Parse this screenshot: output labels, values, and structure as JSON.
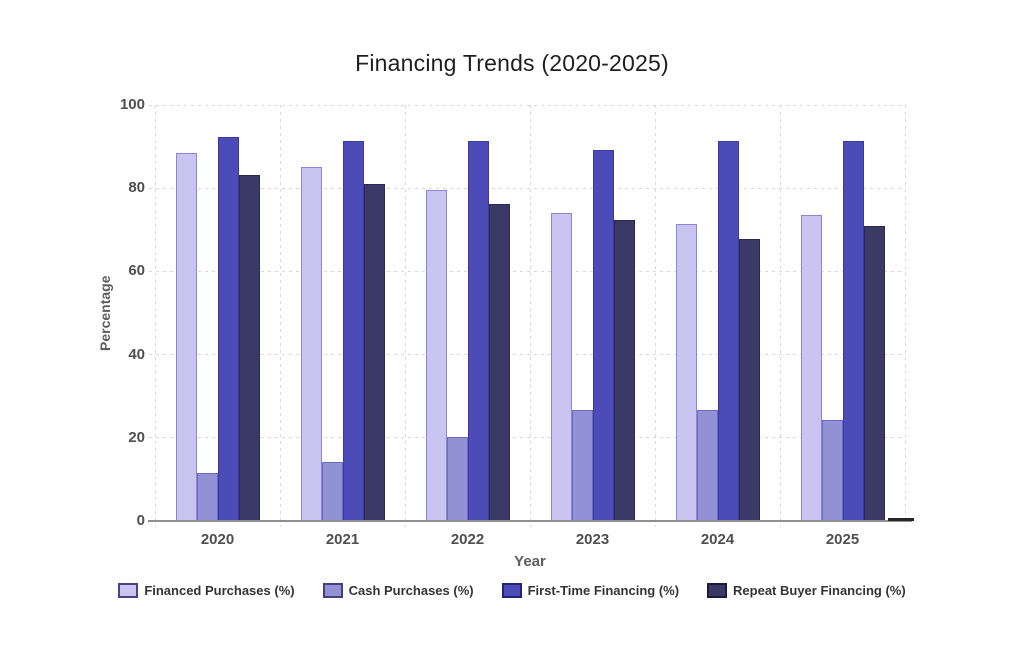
{
  "chart": {
    "title": "Financing Trends (2020-2025)",
    "xlabel": "Year",
    "ylabel": "Percentage"
  },
  "chart_data": {
    "type": "bar",
    "title": "Financing Trends (2020-2025)",
    "xlabel": "Year",
    "ylabel": "Percentage",
    "categories": [
      "2020",
      "2021",
      "2022",
      "2023",
      "2024",
      "2025"
    ],
    "series": [
      {
        "name": "Financed Purchases (%)",
        "color": "#c9c4f0",
        "border": "#8d85d8",
        "legend_border": "#4a4380",
        "values": [
          88.4,
          85.2,
          79.6,
          74.0,
          71.5,
          73.5
        ]
      },
      {
        "name": "Cash Purchases (%)",
        "color": "#9391d6",
        "border": "#6d6bc0",
        "legend_border": "#434178",
        "values": [
          11.5,
          14.3,
          20.2,
          26.7,
          26.7,
          24.3
        ]
      },
      {
        "name": "First-Time Financing (%)",
        "color": "#4c4bb8",
        "border": "#3a39a0",
        "legend_border": "#24237a",
        "values": [
          92.3,
          91.4,
          91.4,
          89.2,
          91.4,
          91.4
        ]
      },
      {
        "name": "Repeat Buyer Financing (%)",
        "color": "#3b3a66",
        "border": "#2a2950",
        "legend_border": "#1c1b38",
        "values": [
          83.1,
          81.0,
          76.1,
          72.3,
          67.9,
          71.0
        ]
      }
    ],
    "ylim": [
      0,
      100
    ],
    "yticks": [
      0,
      20,
      40,
      60,
      80,
      100
    ],
    "grid": true,
    "legend_position": "bottom"
  }
}
